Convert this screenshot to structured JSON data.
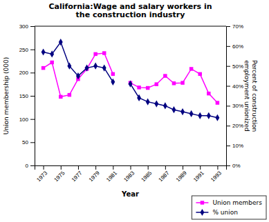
{
  "chart_data": {
    "type": "line",
    "title": "California:Wage and salary workers in\nthe construction industry",
    "x_label": "Year",
    "y_label": "Union membership (000)",
    "y2_label": "Percent of construction\nemployment unionized",
    "x": [
      1973,
      1974,
      1975,
      1976,
      1977,
      1978,
      1979,
      1980,
      1981,
      1982,
      1983,
      1984,
      1985,
      1986,
      1987,
      1988,
      1989,
      1990,
      1991,
      1992,
      1993
    ],
    "series": [
      {
        "name": "Union members",
        "color": "#ff00ff",
        "marker": "square",
        "line_style": "solid",
        "values": [
          210,
          222,
          148,
          152,
          186,
          208,
          240,
          242,
          197,
          null,
          178,
          168,
          167,
          175,
          193,
          177,
          178,
          208,
          197,
          155,
          135
        ]
      },
      {
        "name": "% union",
        "color": "#000080",
        "marker": "diamond",
        "line_style": "solid",
        "axis": "y2",
        "values": [
          57,
          56,
          62,
          50,
          45,
          49,
          50,
          49,
          42,
          null,
          41,
          34,
          32,
          31,
          30,
          28,
          27,
          26,
          25,
          25,
          24
        ]
      }
    ],
    "xlim": [
      1972,
      1994
    ],
    "xticks": [
      1973,
      1975,
      1977,
      1979,
      1981,
      1983,
      1985,
      1987,
      1989,
      1991,
      1993
    ],
    "ylim": [
      0,
      300
    ],
    "yticks": [
      0,
      50,
      100,
      150,
      200,
      250,
      300
    ],
    "y2lim": [
      0,
      70
    ],
    "y2ticks": [
      {
        "value": 0,
        "label": "0%"
      },
      {
        "value": 10,
        "label": "10%"
      },
      {
        "value": 20,
        "label": "20%"
      },
      {
        "value": 30,
        "label": "30%"
      },
      {
        "value": 40,
        "label": "40%"
      },
      {
        "value": 50,
        "label": "50%"
      },
      {
        "value": 60,
        "label": "60%"
      },
      {
        "value": 70,
        "label": "70%"
      }
    ],
    "grid": false,
    "legend": "lower right"
  }
}
